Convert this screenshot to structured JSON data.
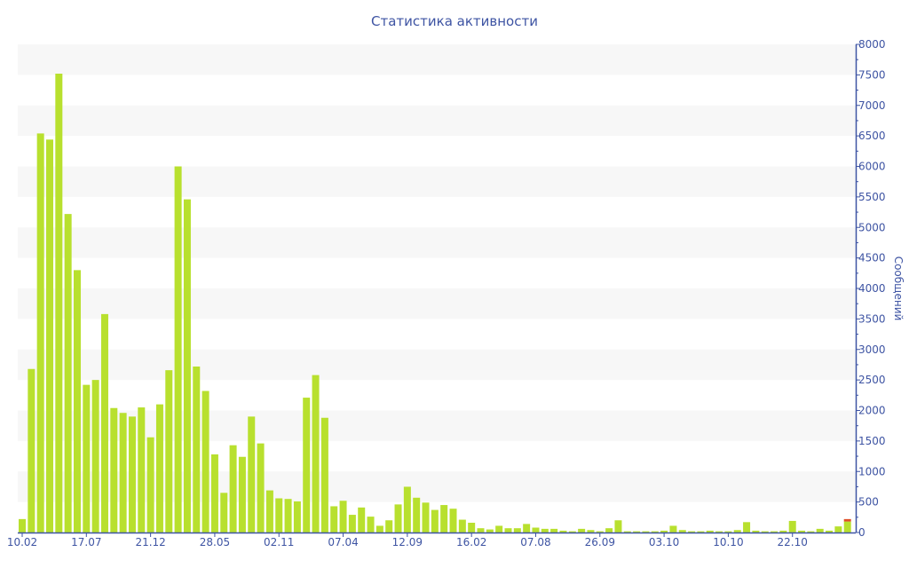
{
  "chart_data": {
    "type": "bar",
    "title": "Статистика активности",
    "ylabel": "Сообщений",
    "ylim": [
      0,
      8000
    ],
    "ytick_step": 500,
    "grid": "alternating horizontal bands",
    "y_axis_side": "right",
    "x_tick_labels": [
      {
        "index": 0,
        "label": "10.02"
      },
      {
        "index": 7,
        "label": "17.07"
      },
      {
        "index": 14,
        "label": "21.12"
      },
      {
        "index": 21,
        "label": "28.05"
      },
      {
        "index": 28,
        "label": "02.11"
      },
      {
        "index": 35,
        "label": "07.04"
      },
      {
        "index": 42,
        "label": "12.09"
      },
      {
        "index": 49,
        "label": "16.02"
      },
      {
        "index": 56,
        "label": "07.08"
      },
      {
        "index": 63,
        "label": "26.09"
      },
      {
        "index": 70,
        "label": "03.10"
      },
      {
        "index": 77,
        "label": "10.10"
      },
      {
        "index": 84,
        "label": "22.10"
      }
    ],
    "colors": {
      "primary": "#b8e02e",
      "secondary": "#e0502a",
      "axis": "#3e54a3",
      "band": "#f7f7f7"
    },
    "series": [
      {
        "values": [
          220,
          2680,
          6540,
          6440,
          7520,
          5220,
          4300,
          2420,
          2500,
          3580,
          2040,
          1960,
          1900,
          2050,
          1560,
          2100,
          2660,
          6000,
          5460,
          2720,
          2320,
          1280,
          650,
          1430,
          1240,
          1900,
          1460,
          690,
          560,
          550,
          510,
          2210,
          2580,
          1880,
          430,
          520,
          290,
          410,
          260,
          110,
          200,
          460,
          750,
          570,
          490,
          370,
          450,
          390,
          210,
          160,
          70,
          50,
          110,
          70,
          70,
          140,
          80,
          60,
          60,
          30,
          20,
          60,
          40,
          20,
          70,
          200,
          20,
          20,
          20,
          20,
          30,
          110,
          40,
          20,
          20,
          30,
          20,
          20,
          40,
          170,
          30,
          20,
          20,
          30,
          190,
          30,
          20,
          60,
          30,
          100,
          180
        ]
      },
      {
        "values": [
          0,
          0,
          0,
          0,
          0,
          0,
          0,
          0,
          0,
          0,
          0,
          0,
          0,
          0,
          0,
          0,
          0,
          0,
          0,
          0,
          0,
          0,
          0,
          0,
          0,
          0,
          0,
          0,
          0,
          0,
          0,
          0,
          0,
          0,
          0,
          0,
          0,
          0,
          0,
          0,
          0,
          0,
          0,
          0,
          0,
          0,
          0,
          0,
          0,
          0,
          0,
          0,
          0,
          0,
          0,
          0,
          0,
          0,
          0,
          0,
          0,
          0,
          0,
          0,
          0,
          0,
          0,
          0,
          0,
          0,
          0,
          0,
          0,
          0,
          0,
          0,
          0,
          0,
          0,
          0,
          0,
          0,
          0,
          0,
          0,
          0,
          0,
          0,
          0,
          0,
          40
        ]
      }
    ]
  }
}
